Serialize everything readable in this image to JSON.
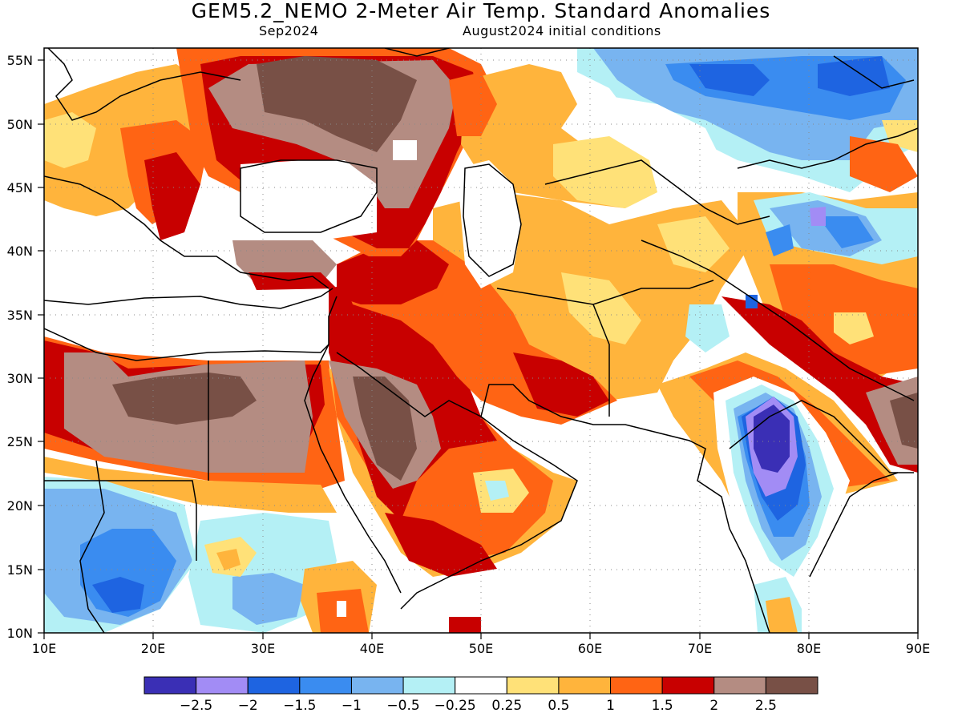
{
  "title": "GEM5.2_NEMO 2-Meter Air Temp. Standard Anomalies",
  "subtitle_left": "Sep2024",
  "subtitle_right": "August2024 initial conditions",
  "map": {
    "lon_range": [
      10,
      90
    ],
    "lat_range": [
      10,
      56
    ],
    "lon_ticks": [
      "10E",
      "20E",
      "30E",
      "40E",
      "50E",
      "60E",
      "70E",
      "80E",
      "90E"
    ],
    "lat_ticks": [
      "10N",
      "15N",
      "20N",
      "25N",
      "30N",
      "35N",
      "40N",
      "45N",
      "50N",
      "55N"
    ],
    "grid": "dotted"
  },
  "colorbar": {
    "colors": [
      "#3a2fb5",
      "#a28cf5",
      "#1e64e1",
      "#3a8cf0",
      "#78b4f0",
      "#b4f0f5",
      "#ffffff",
      "#ffe178",
      "#ffb43c",
      "#ff6414",
      "#c80000",
      "#b48c82",
      "#785046"
    ],
    "labels": [
      "−2.5",
      "−2",
      "−1.5",
      "−1",
      "−0.5",
      "−0.25",
      "0.25",
      "0.5",
      "1",
      "1.5",
      "2",
      "2.5"
    ]
  }
}
